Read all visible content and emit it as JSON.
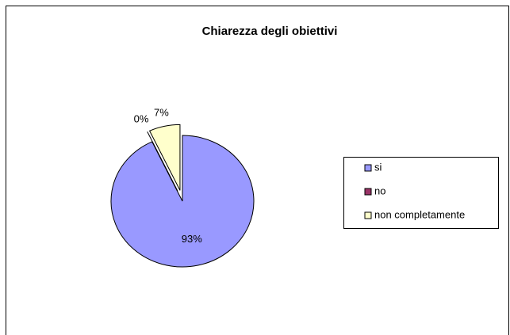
{
  "chart_data": {
    "type": "pie",
    "title": "Chiarezza degli obiettivi",
    "categories": [
      "si",
      "no",
      "non completamente"
    ],
    "values": [
      93,
      0,
      7
    ],
    "value_labels": [
      "93%",
      "0%",
      "7%"
    ],
    "colors": [
      "#9999ff",
      "#993366",
      "#ffffcc"
    ],
    "legend": "right"
  }
}
